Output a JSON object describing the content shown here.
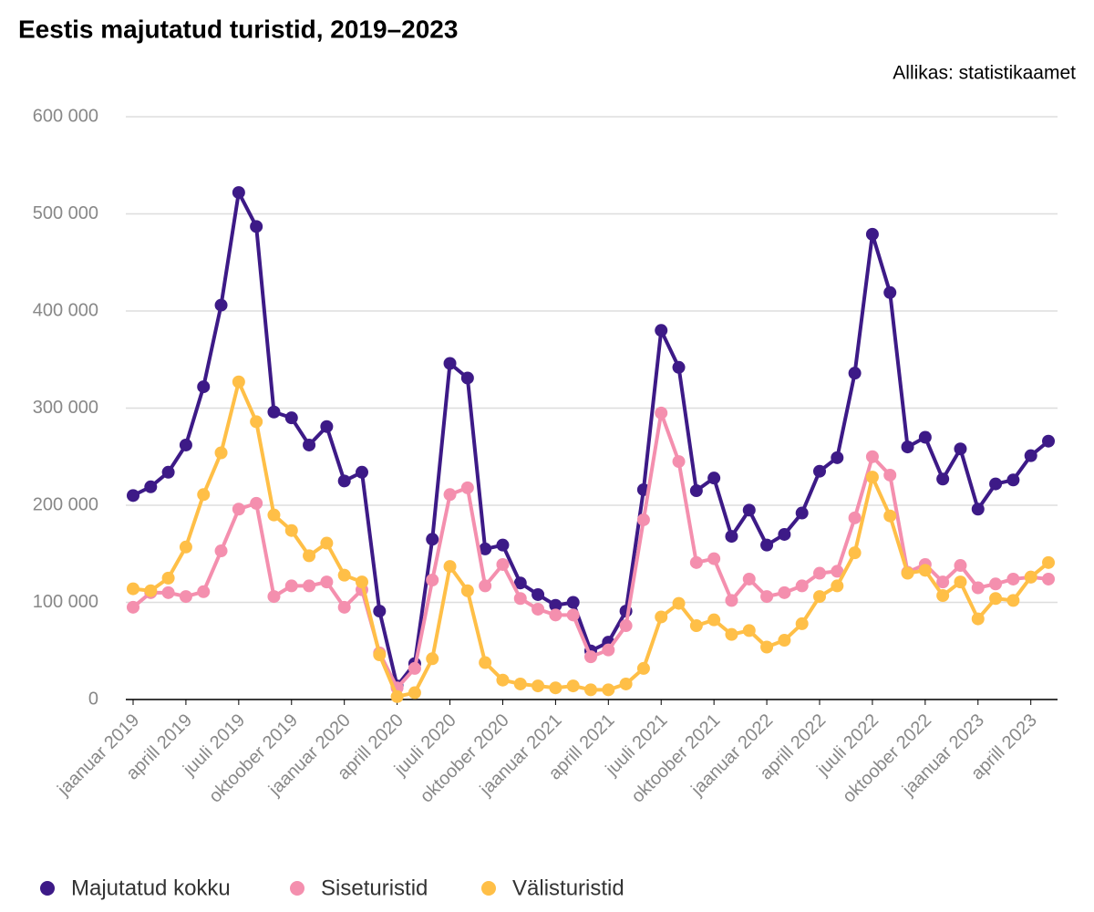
{
  "chart_data": {
    "type": "line",
    "title": "Eestis majutatud turistid, 2019–2023",
    "source": "Allikas: statistikaamet",
    "categories": [
      "jaanuar 2019",
      null,
      null,
      "aprill 2019",
      null,
      null,
      "juuli 2019",
      null,
      null,
      "oktoober 2019",
      null,
      null,
      "jaanuar 2020",
      null,
      null,
      "aprill 2020",
      null,
      null,
      "juuli 2020",
      null,
      null,
      "oktoober 2020",
      null,
      null,
      "jaanuar 2021",
      null,
      null,
      "aprill 2021",
      null,
      null,
      "juuli 2021",
      null,
      null,
      "oktoober 2021",
      null,
      null,
      "jaanuar 2022",
      null,
      null,
      "aprill 2022",
      null,
      null,
      "juuli 2022",
      null,
      null,
      "oktoober 2022",
      null,
      null,
      "jaanuar 2023",
      null,
      null,
      "aprill 2023",
      null
    ],
    "series": [
      {
        "name": "Majutatud kokku",
        "color": "#3d1a87",
        "values": [
          210000,
          219000,
          234000,
          262000,
          322000,
          406000,
          522000,
          487000,
          296000,
          290000,
          262000,
          281000,
          225000,
          234000,
          91000,
          14000,
          37000,
          165000,
          346000,
          331000,
          155000,
          159000,
          120000,
          108000,
          97000,
          100000,
          50000,
          59000,
          91000,
          216000,
          380000,
          342000,
          215000,
          228000,
          168000,
          195000,
          159000,
          170000,
          192000,
          235000,
          249000,
          336000,
          479000,
          419000,
          260000,
          270000,
          227000,
          258000,
          196000,
          222000,
          226000,
          251000,
          266000
        ]
      },
      {
        "name": "Siseturistid",
        "color": "#f48fae",
        "values": [
          95000,
          110000,
          110000,
          106000,
          111000,
          153000,
          196000,
          202000,
          106000,
          117000,
          117000,
          121000,
          95000,
          113000,
          48000,
          12000,
          32000,
          123000,
          211000,
          218000,
          117000,
          139000,
          104000,
          93000,
          87000,
          87000,
          44000,
          51000,
          76000,
          185000,
          295000,
          245000,
          141000,
          145000,
          102000,
          124000,
          106000,
          110000,
          117000,
          130000,
          132000,
          187000,
          250000,
          231000,
          131000,
          139000,
          121000,
          138000,
          115000,
          119000,
          124000,
          126000,
          124000
        ]
      },
      {
        "name": "Välisturistid",
        "color": "#ffbf47",
        "values": [
          114000,
          112000,
          125000,
          157000,
          211000,
          254000,
          327000,
          286000,
          190000,
          174000,
          148000,
          161000,
          128000,
          121000,
          46000,
          3000,
          7000,
          42000,
          137000,
          112000,
          38000,
          20000,
          16000,
          14000,
          12000,
          14000,
          10000,
          10000,
          16000,
          32000,
          85000,
          99000,
          76000,
          82000,
          67000,
          71000,
          54000,
          61000,
          78000,
          106000,
          117000,
          151000,
          229000,
          189000,
          130000,
          133000,
          107000,
          121000,
          83000,
          104000,
          102000,
          126000,
          141000
        ]
      }
    ],
    "ylim": [
      0,
      600000
    ],
    "yticks": [
      0,
      {
        "value": 100000,
        "label": "100 000"
      },
      {
        "value": 200000,
        "label": "200 000"
      },
      {
        "value": 300000,
        "label": "300 000"
      },
      {
        "value": 400000,
        "label": "400 000"
      },
      {
        "value": 500000,
        "label": "500 000"
      },
      {
        "value": 600000,
        "label": "600 000"
      }
    ],
    "grid": true
  }
}
